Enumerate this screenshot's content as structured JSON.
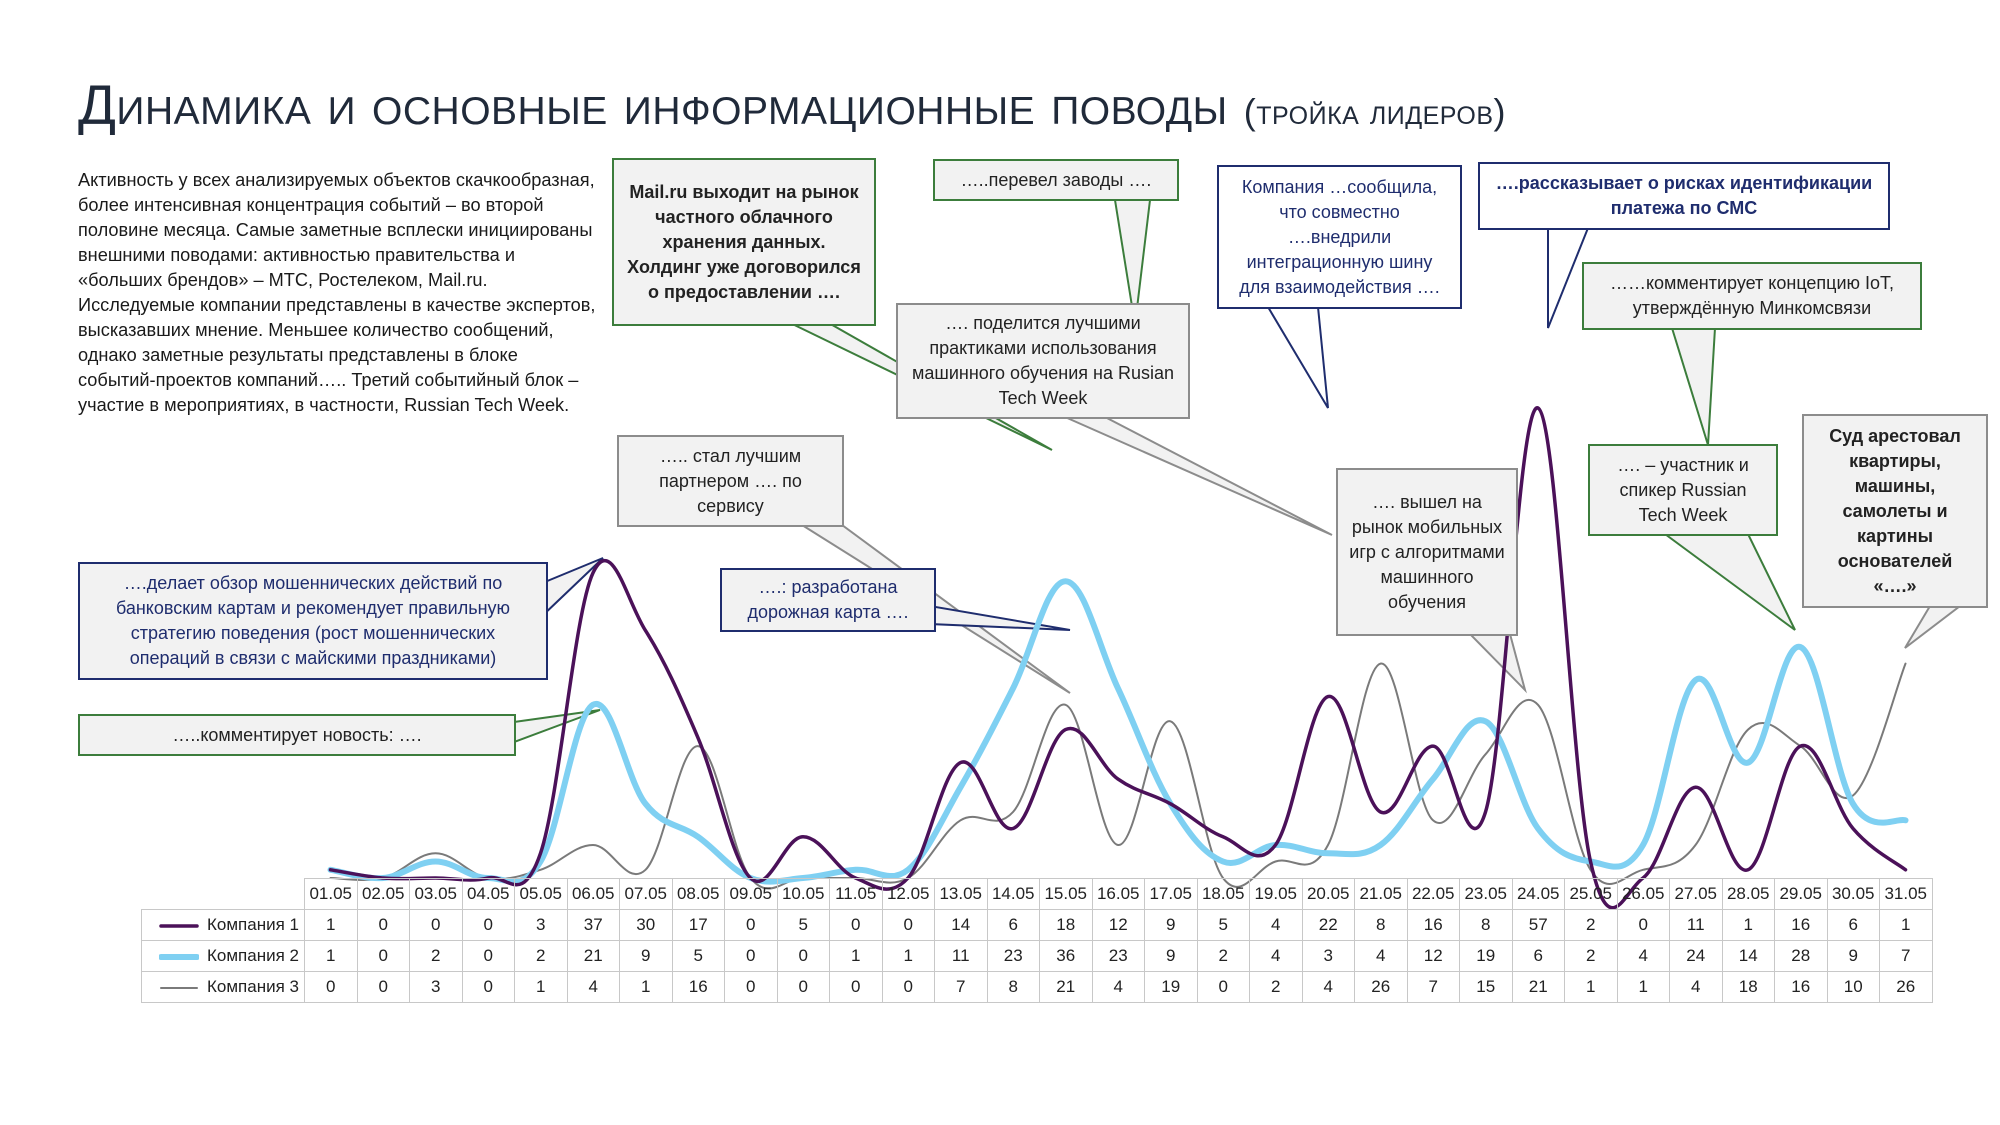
{
  "title": {
    "main": "Динамика и основные информационные поводы",
    "sub": "(тройка лидеров)"
  },
  "intro_text": "Активность у всех анализируемых объектов скачкообразная, более интенсивная концентрация событий – во второй половине месяца. Самые заметные всплески инициированы внешними поводами: активностью правительства и «больших брендов» – МТС, Ростелеком, Mail.ru. Исследуемые компании представлены в качестве экспертов, высказавших мнение. Меньшее количество сообщений, однако заметные результаты представлены в блоке событий-проектов компаний….. Третий событийный блок – участие в мероприятиях, в частности, Russian Tech Week.",
  "callouts": {
    "mailru": "Mail.ru выходит на рынок частного облачного хранения данных. Холдинг уже договорился о предоставлении ….",
    "zavody": "…..перевел заводы ….",
    "ml_share": "…. поделится лучшими практиками использования машинного обучения на Rusian Tech Week",
    "integration": "Компания …сообщила, что совместно ….внедрили интеграционную шину для взаимодействия ….",
    "sms": "….рассказывает о рисках идентификации платежа по СМС",
    "iot": "……комментирует концепцию IoT, утверждённую Минкомсвязи",
    "partner": "….. стал лучшим партнером …. по сервису",
    "fraud": "….делает обзор мошеннических действий по банковским картам и рекомендует правильную стратегию поведения (рост мошеннических операций в связи с майскими праздниками)",
    "roadmap": "….: разработана дорожная карта ….",
    "news": "…..комментирует новость: ….",
    "mobile": "…. вышел на рынок мобильных игр с алгоритмами машинного обучения",
    "speaker": "…. – участник и спикер Russian Tech Week",
    "court": "Суд арестовал квартиры, машины, самолеты и картины основателей «….»"
  },
  "colors": {
    "company1": "#4b1159",
    "company2": "#7fd0f2",
    "company3": "#7a7a7a",
    "callout_green": "#3c7d3c",
    "callout_gray": "#8c8c8c",
    "callout_blue": "#1f2d6e"
  },
  "chart_data": {
    "type": "line",
    "x": [
      "01.05",
      "02.05",
      "03.05",
      "04.05",
      "05.05",
      "06.05",
      "07.05",
      "08.05",
      "09.05",
      "10.05",
      "11.05",
      "12.05",
      "13.05",
      "14.05",
      "15.05",
      "16.05",
      "17.05",
      "18.05",
      "19.05",
      "20.05",
      "21.05",
      "22.05",
      "23.05",
      "24.05",
      "25.05",
      "26.05",
      "27.05",
      "28.05",
      "29.05",
      "30.05",
      "31.05"
    ],
    "series": [
      {
        "name": "Компания 1",
        "values": [
          1,
          0,
          0,
          0,
          3,
          37,
          30,
          17,
          0,
          5,
          0,
          0,
          14,
          6,
          18,
          12,
          9,
          5,
          4,
          22,
          8,
          16,
          8,
          57,
          2,
          0,
          11,
          1,
          16,
          6,
          1
        ]
      },
      {
        "name": "Компания 2",
        "values": [
          1,
          0,
          2,
          0,
          2,
          21,
          9,
          5,
          0,
          0,
          1,
          1,
          11,
          23,
          36,
          23,
          9,
          2,
          4,
          3,
          4,
          12,
          19,
          6,
          2,
          4,
          24,
          14,
          28,
          9,
          7
        ]
      },
      {
        "name": "Компания 3",
        "values": [
          0,
          0,
          3,
          0,
          1,
          4,
          1,
          16,
          0,
          0,
          0,
          0,
          7,
          8,
          21,
          4,
          19,
          0,
          2,
          4,
          26,
          7,
          15,
          21,
          1,
          1,
          4,
          18,
          16,
          10,
          26
        ]
      }
    ],
    "ylim": [
      0,
      57
    ]
  }
}
